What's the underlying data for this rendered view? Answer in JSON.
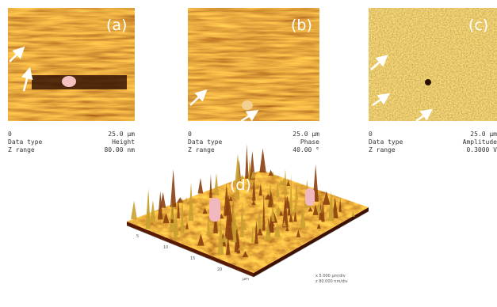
{
  "panels": [
    {
      "label": "(a)",
      "scale_start": "0",
      "scale_end": "25.0 µm",
      "data_type_label": "Data type",
      "data_type": "Height",
      "z_range_label": "Z range",
      "z_range": "80.00 nm"
    },
    {
      "label": "(b)",
      "scale_start": "0",
      "scale_end": "25.0 µm",
      "data_type_label": "Data type",
      "data_type": "Phase",
      "z_range_label": "Z range",
      "z_range": "40.00 °"
    },
    {
      "label": "(c)",
      "scale_start": "0",
      "scale_end": "25.0 µm",
      "data_type_label": "Data type",
      "data_type": "Amplitude",
      "z_range_label": "Z range",
      "z_range": "0.3000 V"
    }
  ],
  "surface": {
    "label": "(d)",
    "axis_ticks": [
      "5",
      "10",
      "15",
      "20"
    ],
    "axis_unit": "µm",
    "x_scale": "x 5.000 µm/div",
    "z_scale": "z 80.000 nm/div"
  }
}
